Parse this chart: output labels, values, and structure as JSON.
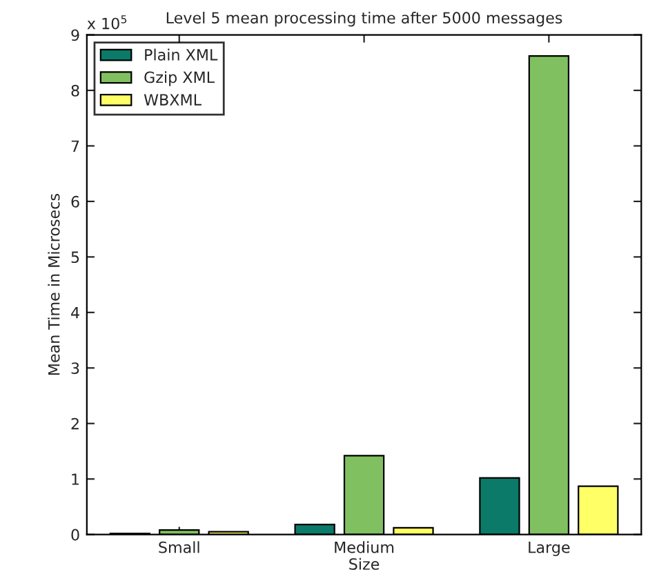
{
  "chart_data": {
    "type": "bar",
    "title": "Level 5 mean processing time after 5000 messages",
    "xlabel": "Size",
    "ylabel": "Mean Time in Microsecs",
    "categories": [
      "Small",
      "Medium",
      "Large"
    ],
    "series": [
      {
        "name": "Plain XML",
        "color": "#0b7a68",
        "values": [
          0.02,
          0.18,
          1.02
        ]
      },
      {
        "name": "Gzip XML",
        "color": "#80c060",
        "values": [
          0.08,
          1.42,
          8.62
        ]
      },
      {
        "name": "WBXML",
        "color": "#ffff66",
        "values": [
          0.05,
          0.12,
          0.87
        ]
      }
    ],
    "ylim": [
      0,
      9
    ],
    "yticks": [
      0,
      1,
      2,
      3,
      4,
      5,
      6,
      7,
      8,
      9
    ],
    "annotations": [
      "x 10$^{5}$"
    ],
    "legend": "top left",
    "grid": false
  }
}
